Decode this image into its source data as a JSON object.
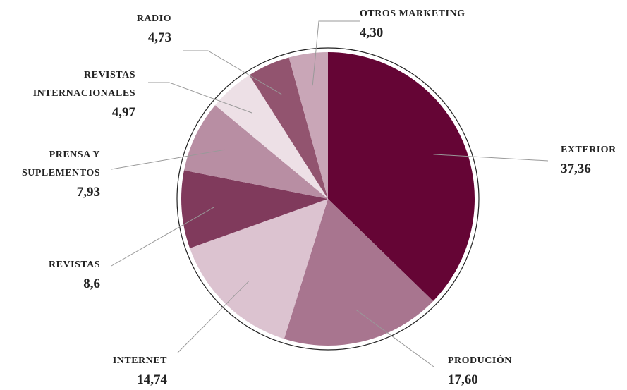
{
  "chart_data": {
    "type": "pie",
    "categories": [
      "EXTERIOR",
      "PRODUCIÓN",
      "INTERNET",
      "REVISTAS",
      "PRENSA Y\nSUPLEMENTOS",
      "REVISTAS\nINTERNACIONALES",
      "RADIO",
      "OTROS MARKETING"
    ],
    "values": [
      37.36,
      17.6,
      14.74,
      8.6,
      7.93,
      4.97,
      4.73,
      4.3
    ],
    "value_labels": [
      "37,36",
      "17,60",
      "14,74",
      "8,6",
      "7,93",
      "4,97",
      "4,73",
      "4,30"
    ],
    "colors": [
      "#650535",
      "#a8758f",
      "#dcc3d0",
      "#803a5c",
      "#b88ea3",
      "#ede0e6",
      "#92546f",
      "#c9a6b7"
    ]
  }
}
